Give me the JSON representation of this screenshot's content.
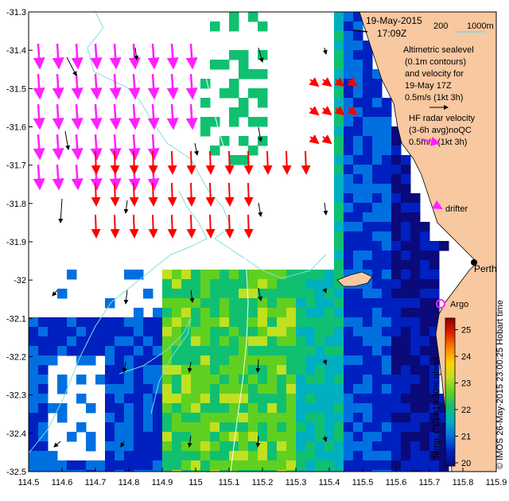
{
  "title": {
    "date": "19-May-2015",
    "time": "17:09Z"
  },
  "depth_legend": {
    "label_200": "200",
    "label_1000": "1000m",
    "color": "#6fe0e0"
  },
  "altimetry_note": [
    "Altimetric sealevel",
    "(0.1m contours)",
    "and velocity for",
    "19-May 17Z",
    "0.5m/s (1kt 3h)"
  ],
  "hf_note": [
    "HF radar velocity",
    "(3-6h avg)noQC",
    "0.5m/s (1kt 3h)"
  ],
  "markers": {
    "drifter": "drifter",
    "argo": "Argo",
    "perth": "Perth"
  },
  "colorbar": {
    "label": "Temp. (°C) n19 30% ql>=4",
    "ticks": [
      "20",
      "21",
      "22",
      "23",
      "24",
      "25"
    ],
    "range": [
      20,
      25
    ],
    "colors": [
      "#0a0a7a",
      "#0020c0",
      "#0070e0",
      "#00b0c0",
      "#10c070",
      "#60d020",
      "#c0e020",
      "#ffd000",
      "#ff8000",
      "#e02000",
      "#8a0000"
    ]
  },
  "credit": "© IMOS 26-May-2015 23:00:25 Hobart time",
  "axes": {
    "x_ticks": [
      "114.5",
      "114.6",
      "114.7",
      "114.8",
      "114.9",
      "115",
      "115.1",
      "115.2",
      "115.3",
      "115.4",
      "115.5",
      "115.6",
      "115.7",
      "115.8",
      "115.9"
    ],
    "y_ticks": [
      "-31.3",
      "-31.4",
      "-31.5",
      "-31.6",
      "-31.7",
      "-31.8",
      "-31.9",
      "-32",
      "-32.1",
      "-32.2",
      "-32.3",
      "-32.4",
      "-32.5"
    ],
    "xlim": [
      114.5,
      115.9
    ],
    "ylim": [
      -32.5,
      -31.3
    ]
  },
  "colors": {
    "land": "#f8c8a0",
    "hf_arrow_magenta": "#ff20ff",
    "hf_arrow_red": "#ff0000",
    "altimetry_arrow": "#000000",
    "contour": "#7fdede"
  }
}
